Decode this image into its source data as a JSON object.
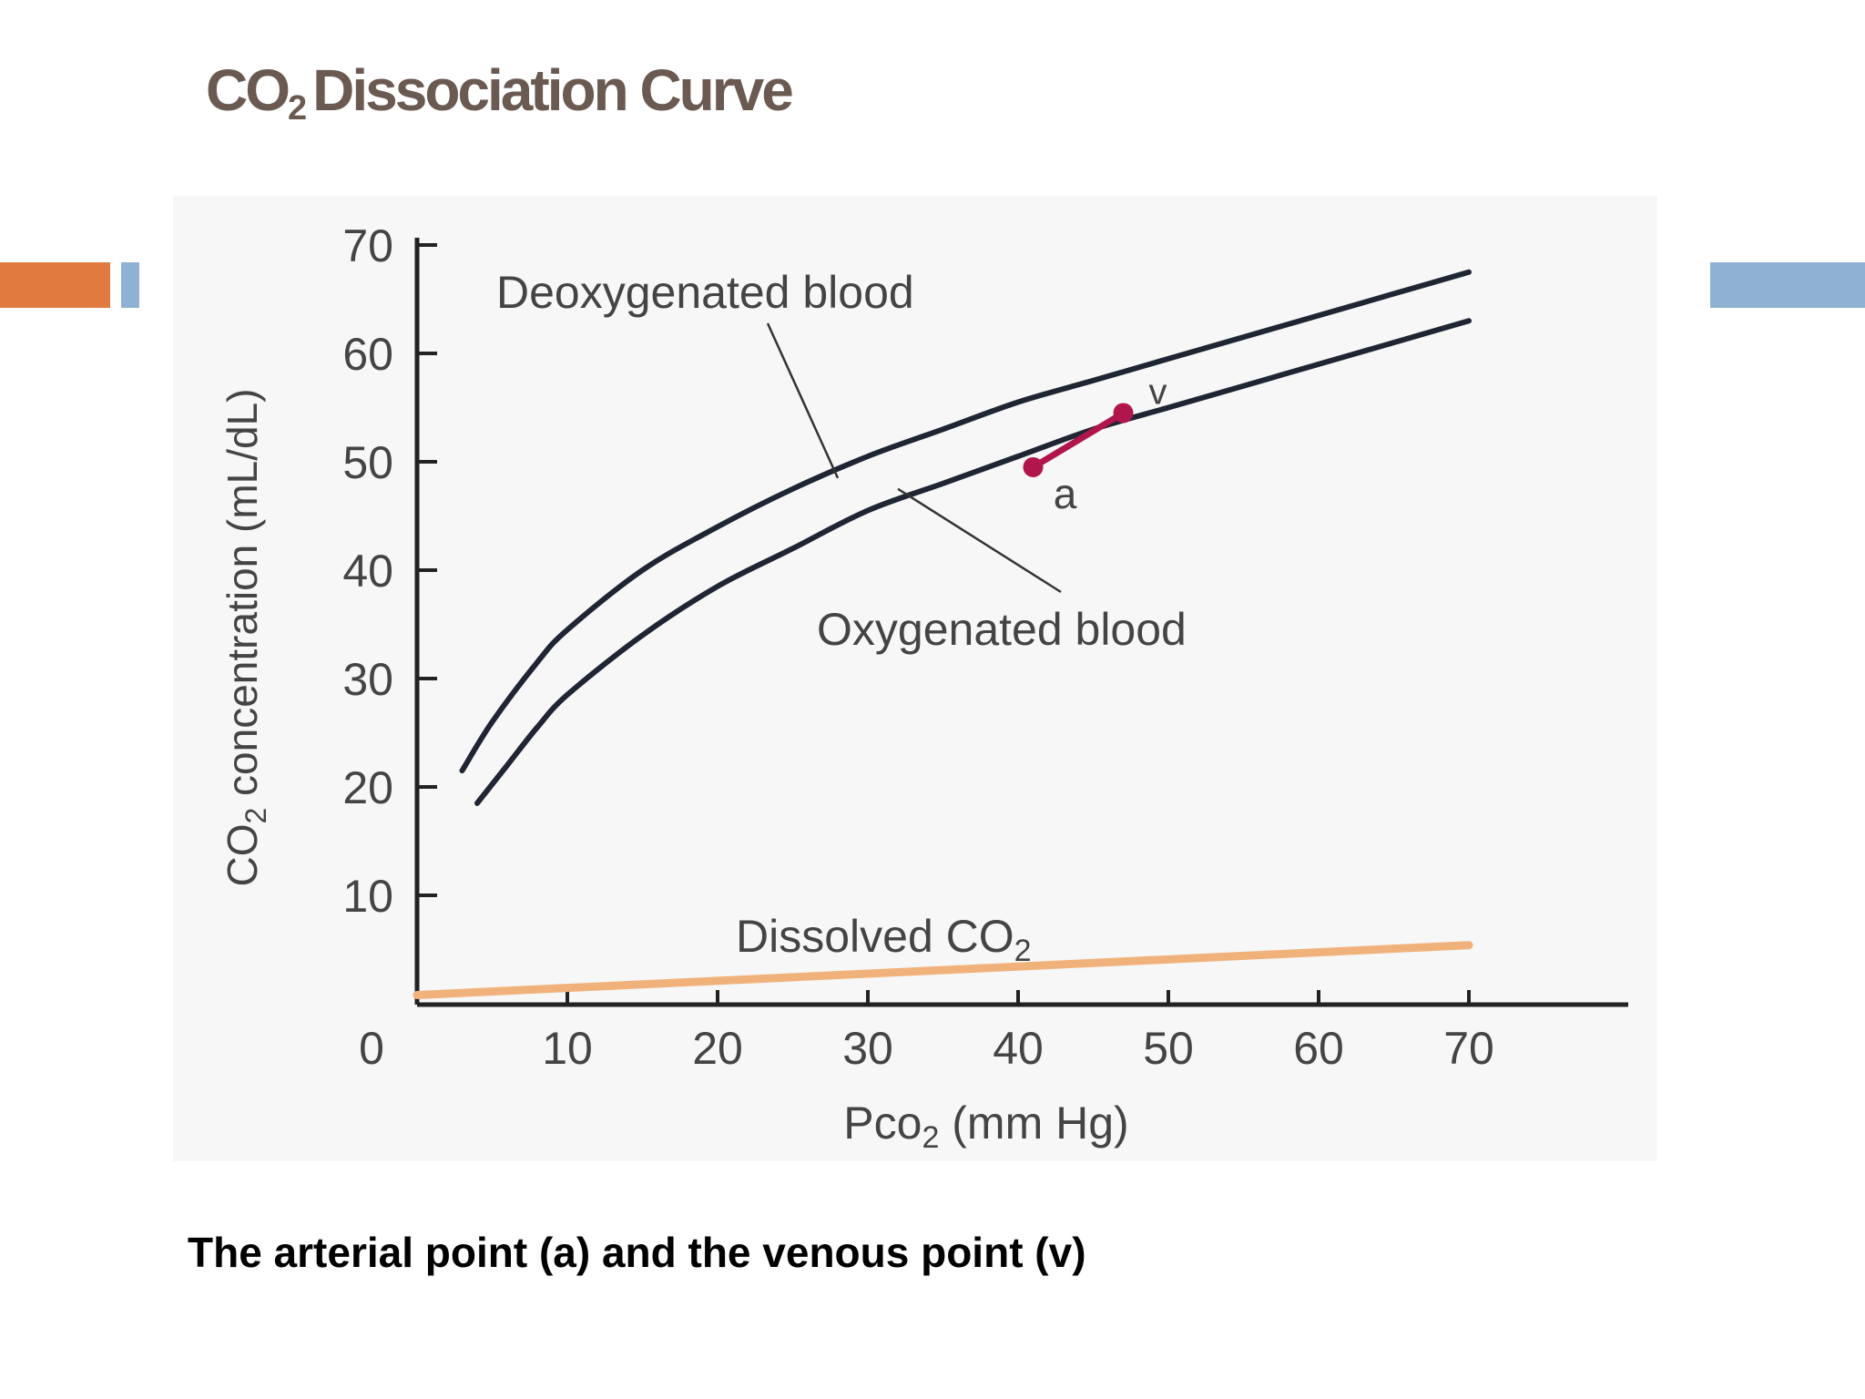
{
  "slide": {
    "title_prefix": "CO",
    "title_subscript": "2",
    "title_suffix": "Dissociation Curve",
    "caption": "The arterial point (a) and the venous point (v)"
  },
  "colors": {
    "title": "#6b5a51",
    "accent_orange": "#e07a3e",
    "accent_blue": "#8fb2d2",
    "curve": "#1f2533",
    "dissolved": "#f0b27a",
    "points": "#b0154c",
    "axis": "#222222",
    "text": "#444444"
  },
  "chart_data": {
    "type": "line",
    "title": "",
    "xlabel_main": "Pco",
    "xlabel_sub": "2",
    "xlabel_tail": " (mm Hg)",
    "ylabel_prefix": "CO",
    "ylabel_sub": "2",
    "ylabel_suffix": " concentration (mL/dL)",
    "xlim": [
      0,
      80
    ],
    "ylim": [
      0,
      70
    ],
    "x_ticks": [
      0,
      10,
      20,
      30,
      40,
      50,
      60,
      70
    ],
    "x_tick_labels": [
      "0",
      "10",
      "20",
      "30",
      "40",
      "50",
      "60",
      "70"
    ],
    "y_ticks": [
      10,
      20,
      30,
      40,
      50,
      60,
      70
    ],
    "y_tick_labels": [
      "10",
      "20",
      "30",
      "40",
      "50",
      "60",
      "70"
    ],
    "grid": false,
    "series": [
      {
        "name": "Deoxygenated blood",
        "label": "Deoxygenated blood",
        "x": [
          3,
          5,
          8,
          10,
          15,
          20,
          25,
          30,
          35,
          40,
          45,
          50,
          55,
          60,
          65,
          70
        ],
        "y": [
          21.5,
          26,
          31.5,
          34.5,
          40,
          44,
          47.5,
          50.5,
          53,
          55.5,
          57.5,
          59.5,
          61.5,
          63.5,
          65.5,
          67.5
        ]
      },
      {
        "name": "Oxygenated blood",
        "label": "Oxygenated blood",
        "x": [
          4,
          6,
          8,
          10,
          15,
          20,
          25,
          30,
          35,
          40,
          45,
          50,
          55,
          60,
          65,
          70
        ],
        "y": [
          18.5,
          22,
          25.5,
          28.5,
          34,
          38.5,
          42,
          45.5,
          48,
          50.5,
          53,
          55,
          57,
          59,
          61,
          63
        ]
      },
      {
        "name": "Dissolved CO2",
        "label_prefix": "Dissolved CO",
        "label_sub": "2",
        "x": [
          0,
          70
        ],
        "y": [
          0.8,
          5.4
        ]
      }
    ],
    "points": [
      {
        "label": "a",
        "x": 41,
        "y": 49.5
      },
      {
        "label": "v",
        "x": 47,
        "y": 54.5
      }
    ]
  }
}
